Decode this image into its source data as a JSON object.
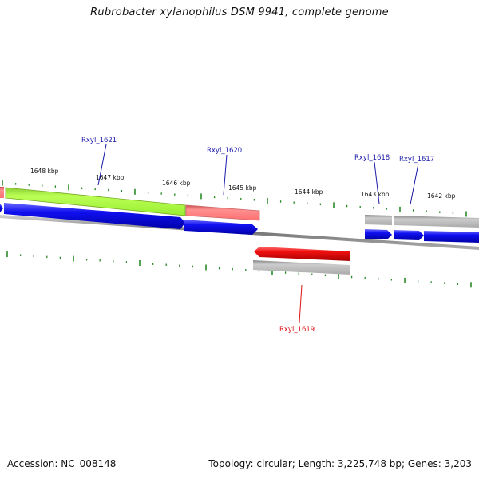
{
  "title": "Rubrobacter xylanophilus DSM 9941, complete genome",
  "footer": {
    "accession": "Accession: NC_008148",
    "summary": "Topology: circular; Length: 3,225,748 bp; Genes: 3,203"
  },
  "ruler": {
    "labels": [
      "1648 kbp",
      "1647 kbp",
      "1646 kbp",
      "1645 kbp",
      "1644 kbp",
      "1643 kbp",
      "1642 kbp"
    ]
  },
  "loci": [
    {
      "name": "Rxyl_1621",
      "strand": "forward",
      "color": "#1a1aaa"
    },
    {
      "name": "Rxyl_1620",
      "strand": "forward",
      "color": "#1a1aaa"
    },
    {
      "name": "Rxyl_1618",
      "strand": "forward",
      "color": "#1a1aaa"
    },
    {
      "name": "Rxyl_1617",
      "strand": "forward",
      "color": "#1a1aaa"
    },
    {
      "name": "Rxyl_1619",
      "strand": "reverse",
      "color": "#dd1111"
    }
  ],
  "colors": {
    "forward_gene": "#0000ee",
    "reverse_gene": "#ee0000",
    "feature_green": "#aaff44",
    "feature_pink": "#ff8080",
    "feature_gray": "#bbbbbb",
    "tick": "#2a8a2a",
    "backbone": "#888888"
  }
}
